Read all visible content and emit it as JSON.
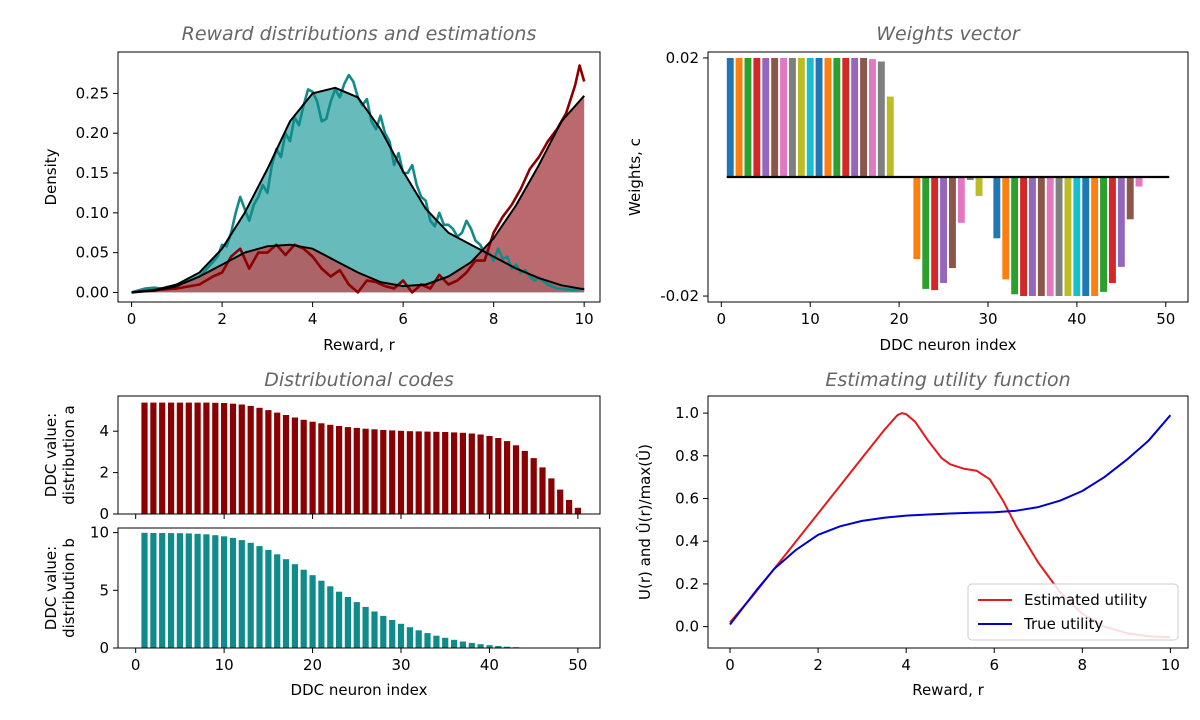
{
  "colors": {
    "teal": "#0f8b8b",
    "teal_fill": "#5fb8b7",
    "dark_red": "#8b0000",
    "red_fill": "#b25a5e",
    "estimated": "#e41a1c",
    "true_utility": "#0000d0",
    "title_grey": "#666666",
    "tab10": [
      "#1f77b4",
      "#ff7f0e",
      "#2ca02c",
      "#d62728",
      "#9467bd",
      "#8c564b",
      "#e377c2",
      "#7f7f7f",
      "#bcbd22",
      "#17becf"
    ]
  },
  "chart_data": [
    {
      "id": "reward",
      "type": "area",
      "title": "Reward distributions and estimations",
      "xlabel": "Reward, r",
      "ylabel": "Density",
      "xlim": [
        -0.3,
        10.35
      ],
      "ylim": [
        -0.012,
        0.302
      ],
      "xticks": [
        0,
        2,
        4,
        6,
        8,
        10
      ],
      "yticks": [
        0.0,
        0.05,
        0.1,
        0.15,
        0.2,
        0.25
      ],
      "ytick_labels": [
        "0.00",
        "0.05",
        "0.10",
        "0.15",
        "0.20",
        "0.25"
      ],
      "grid": false,
      "series": [
        {
          "distribution": "a",
          "kind": "sampled density",
          "color": "teal",
          "x": [
            0,
            0.3,
            0.5,
            0.8,
            1.0,
            1.3,
            1.5,
            1.7,
            1.9,
            2.0,
            2.1,
            2.2,
            2.3,
            2.4,
            2.5,
            2.6,
            2.7,
            2.8,
            2.9,
            3.0,
            3.1,
            3.2,
            3.3,
            3.4,
            3.5,
            3.6,
            3.7,
            3.8,
            3.9,
            4.0,
            4.1,
            4.2,
            4.3,
            4.4,
            4.5,
            4.6,
            4.7,
            4.8,
            4.9,
            5.0,
            5.1,
            5.2,
            5.3,
            5.4,
            5.5,
            5.6,
            5.7,
            5.8,
            5.9,
            6.0,
            6.1,
            6.2,
            6.3,
            6.4,
            6.5,
            6.6,
            6.7,
            6.8,
            6.9,
            7.0,
            7.1,
            7.2,
            7.3,
            7.4,
            7.5,
            7.6,
            7.7,
            7.8,
            7.9,
            8.0,
            8.1,
            8.2,
            8.3,
            8.4,
            8.5,
            8.6,
            8.7,
            8.8,
            8.9,
            9.0,
            9.2,
            9.4,
            9.6,
            9.8,
            10.0
          ],
          "y": [
            0.0,
            0.005,
            0.006,
            0.004,
            0.01,
            0.015,
            0.02,
            0.032,
            0.045,
            0.06,
            0.058,
            0.075,
            0.1,
            0.12,
            0.105,
            0.09,
            0.11,
            0.12,
            0.135,
            0.125,
            0.16,
            0.18,
            0.17,
            0.2,
            0.19,
            0.22,
            0.21,
            0.235,
            0.255,
            0.252,
            0.24,
            0.215,
            0.218,
            0.24,
            0.255,
            0.245,
            0.262,
            0.273,
            0.265,
            0.245,
            0.235,
            0.243,
            0.215,
            0.205,
            0.222,
            0.2,
            0.19,
            0.16,
            0.175,
            0.15,
            0.15,
            0.16,
            0.135,
            0.12,
            0.115,
            0.09,
            0.083,
            0.1,
            0.085,
            0.085,
            0.08,
            0.07,
            0.075,
            0.09,
            0.08,
            0.065,
            0.06,
            0.05,
            0.05,
            0.04,
            0.055,
            0.042,
            0.045,
            0.03,
            0.035,
            0.025,
            0.028,
            0.02,
            0.015,
            0.018,
            0.01,
            0.005,
            0.004,
            0.003,
            0.005
          ]
        },
        {
          "distribution": "b",
          "kind": "sampled density",
          "color": "dark_red",
          "x": [
            0,
            0.5,
            1.0,
            1.5,
            1.8,
            2.0,
            2.2,
            2.4,
            2.6,
            2.8,
            3.0,
            3.2,
            3.4,
            3.6,
            3.8,
            4.0,
            4.2,
            4.4,
            4.6,
            4.8,
            5.0,
            5.2,
            5.4,
            5.6,
            5.8,
            6.0,
            6.2,
            6.4,
            6.6,
            6.8,
            7.0,
            7.2,
            7.4,
            7.6,
            7.8,
            8.0,
            8.2,
            8.4,
            8.6,
            8.8,
            9.0,
            9.2,
            9.4,
            9.6,
            9.8,
            9.9,
            10.0
          ],
          "y": [
            0.0,
            0.003,
            0.005,
            0.01,
            0.02,
            0.025,
            0.045,
            0.055,
            0.03,
            0.05,
            0.05,
            0.06,
            0.047,
            0.06,
            0.055,
            0.045,
            0.03,
            0.02,
            0.028,
            0.01,
            0.0,
            0.015,
            0.013,
            0.008,
            0.005,
            0.015,
            0.0,
            0.01,
            0.005,
            0.022,
            0.01,
            0.015,
            0.025,
            0.04,
            0.04,
            0.075,
            0.095,
            0.11,
            0.13,
            0.155,
            0.17,
            0.19,
            0.205,
            0.225,
            0.26,
            0.285,
            0.265
          ]
        },
        {
          "distribution": "a",
          "kind": "estimated density",
          "color": "black",
          "fill": "teal_fill",
          "x": [
            0,
            0.5,
            1.0,
            1.5,
            2.0,
            2.5,
            3.0,
            3.5,
            4.0,
            4.5,
            5.0,
            5.5,
            6.0,
            6.5,
            7.0,
            7.5,
            8.0,
            8.5,
            9.0,
            9.5,
            10.0
          ],
          "y": [
            0.0,
            0.003,
            0.01,
            0.025,
            0.055,
            0.1,
            0.155,
            0.215,
            0.25,
            0.257,
            0.245,
            0.205,
            0.152,
            0.105,
            0.075,
            0.06,
            0.045,
            0.03,
            0.018,
            0.009,
            0.004
          ]
        },
        {
          "distribution": "b",
          "kind": "estimated density",
          "color": "black",
          "fill": "red_fill",
          "x": [
            0,
            0.5,
            1.0,
            1.5,
            2.0,
            2.5,
            3.0,
            3.5,
            4.0,
            4.5,
            5.0,
            5.5,
            6.0,
            6.5,
            7.0,
            7.5,
            8.0,
            8.5,
            9.0,
            9.5,
            10.0
          ],
          "y": [
            0.0,
            0.002,
            0.008,
            0.02,
            0.035,
            0.05,
            0.058,
            0.06,
            0.055,
            0.04,
            0.025,
            0.013,
            0.008,
            0.01,
            0.02,
            0.038,
            0.068,
            0.11,
            0.16,
            0.215,
            0.247
          ]
        }
      ]
    },
    {
      "id": "weights",
      "type": "bar",
      "title": "Weights vector",
      "xlabel": "DDC neuron index",
      "ylabel": "Weights, c",
      "xlim": [
        -1.5,
        52.5
      ],
      "ylim": [
        -0.021,
        0.021
      ],
      "xticks": [
        0,
        10,
        20,
        30,
        40,
        50
      ],
      "yticks": [
        0.02,
        -0.02
      ],
      "ytick_labels": [
        "0.02",
        "-0.02"
      ],
      "baseline": 0,
      "x": [
        1,
        2,
        3,
        4,
        5,
        6,
        7,
        8,
        9,
        10,
        11,
        12,
        13,
        14,
        15,
        16,
        17,
        18,
        19,
        20,
        21,
        22,
        23,
        24,
        25,
        26,
        27,
        28,
        29,
        30,
        31,
        32,
        33,
        34,
        35,
        36,
        37,
        38,
        39,
        40,
        41,
        42,
        43,
        44,
        45,
        46,
        47,
        48,
        49,
        50
      ],
      "values": [
        0.02,
        0.02,
        0.02,
        0.02,
        0.02,
        0.02,
        0.02,
        0.02,
        0.02,
        0.02,
        0.02,
        0.02,
        0.02,
        0.02,
        0.02,
        0.02,
        0.0198,
        0.0194,
        0.0135,
        0.0,
        0.0,
        -0.0138,
        -0.0188,
        -0.019,
        -0.0178,
        -0.0153,
        -0.0077,
        -0.0005,
        -0.0032,
        0.0,
        -0.0103,
        -0.0172,
        -0.0197,
        -0.02,
        -0.02,
        -0.02,
        -0.02,
        -0.02,
        -0.02,
        -0.02,
        -0.02,
        -0.02,
        -0.0193,
        -0.0178,
        -0.0151,
        -0.0071,
        -0.0016,
        0.0,
        0.0,
        0.0
      ]
    },
    {
      "id": "ddc_a",
      "type": "bar",
      "title": "Distributional codes",
      "ylabel_lines": [
        "DDC value:",
        "distribution a"
      ],
      "xlim": [
        -2,
        52.5
      ],
      "ylim": [
        0,
        5.7
      ],
      "xticks": [
        0,
        10,
        20,
        30,
        40,
        50
      ],
      "yticks": [
        0,
        2,
        4
      ],
      "ytick_labels": [
        "0",
        "2",
        "4"
      ],
      "color": "dark_red",
      "x": [
        1,
        2,
        3,
        4,
        5,
        6,
        7,
        8,
        9,
        10,
        11,
        12,
        13,
        14,
        15,
        16,
        17,
        18,
        19,
        20,
        21,
        22,
        23,
        24,
        25,
        26,
        27,
        28,
        29,
        30,
        31,
        32,
        33,
        34,
        35,
        36,
        37,
        38,
        39,
        40,
        41,
        42,
        43,
        44,
        45,
        46,
        47,
        48,
        49,
        50
      ],
      "values": [
        5.38,
        5.38,
        5.38,
        5.38,
        5.38,
        5.38,
        5.38,
        5.38,
        5.37,
        5.36,
        5.33,
        5.29,
        5.22,
        5.13,
        5.02,
        4.9,
        4.78,
        4.66,
        4.55,
        4.46,
        4.38,
        4.31,
        4.25,
        4.2,
        4.16,
        4.12,
        4.09,
        4.06,
        4.04,
        4.02,
        4.0,
        3.99,
        3.98,
        3.97,
        3.96,
        3.94,
        3.92,
        3.89,
        3.84,
        3.77,
        3.67,
        3.52,
        3.32,
        3.05,
        2.7,
        2.25,
        1.72,
        1.18,
        0.68,
        0.3
      ]
    },
    {
      "id": "ddc_b",
      "type": "bar",
      "ylabel_lines": [
        "DDC value:",
        "distribution b"
      ],
      "xlabel": "DDC neuron index",
      "xlim": [
        -2,
        52.5
      ],
      "ylim": [
        0,
        10.4
      ],
      "xticks": [
        0,
        10,
        20,
        30,
        40,
        50
      ],
      "yticks": [
        0,
        5,
        10
      ],
      "ytick_labels": [
        "0",
        "5",
        "10"
      ],
      "color": "teal",
      "x": [
        1,
        2,
        3,
        4,
        5,
        6,
        7,
        8,
        9,
        10,
        11,
        12,
        13,
        14,
        15,
        16,
        17,
        18,
        19,
        20,
        21,
        22,
        23,
        24,
        25,
        26,
        27,
        28,
        29,
        30,
        31,
        32,
        33,
        34,
        35,
        36,
        37,
        38,
        39,
        40,
        41,
        42,
        43,
        44,
        45,
        46,
        47,
        48,
        49,
        50
      ],
      "values": [
        9.98,
        9.97,
        9.97,
        9.96,
        9.95,
        9.93,
        9.9,
        9.85,
        9.78,
        9.68,
        9.54,
        9.35,
        9.12,
        8.83,
        8.5,
        8.12,
        7.7,
        7.26,
        6.79,
        6.31,
        5.83,
        5.35,
        4.88,
        4.42,
        3.98,
        3.56,
        3.16,
        2.78,
        2.43,
        2.1,
        1.8,
        1.53,
        1.29,
        1.07,
        0.88,
        0.71,
        0.56,
        0.44,
        0.33,
        0.24,
        0.17,
        0.11,
        0.07,
        0.04,
        0.02,
        0.01,
        0.0,
        0.0,
        0.0,
        0.0
      ]
    },
    {
      "id": "utility",
      "type": "line",
      "title": "Estimating utility function",
      "xlabel": "Reward, r",
      "ylabel": "U(r) and Û(r)/max(Û)",
      "xlim": [
        -0.5,
        10.4
      ],
      "ylim": [
        -0.1,
        1.08
      ],
      "xticks": [
        0,
        2,
        4,
        6,
        8,
        10
      ],
      "yticks": [
        0.0,
        0.2,
        0.4,
        0.6,
        0.8,
        1.0
      ],
      "ytick_labels": [
        "0.0",
        "0.2",
        "0.4",
        "0.6",
        "0.8",
        "1.0"
      ],
      "legend_position": "bottom-right",
      "series": [
        {
          "name": "Estimated utility",
          "color": "estimated",
          "x": [
            0.0,
            0.5,
            1.0,
            1.5,
            2.0,
            2.5,
            3.0,
            3.5,
            3.8,
            3.9,
            4.0,
            4.2,
            4.5,
            4.8,
            5.0,
            5.3,
            5.6,
            5.9,
            6.2,
            6.5,
            7.0,
            7.5,
            8.0,
            8.5,
            9.0,
            9.5,
            10.0
          ],
          "y": [
            0.02,
            0.14,
            0.27,
            0.4,
            0.53,
            0.66,
            0.79,
            0.92,
            0.99,
            1.0,
            0.995,
            0.96,
            0.87,
            0.79,
            0.76,
            0.74,
            0.73,
            0.69,
            0.59,
            0.47,
            0.3,
            0.16,
            0.06,
            0.0,
            -0.03,
            -0.045,
            -0.05
          ]
        },
        {
          "name": "True utility",
          "color": "true_utility",
          "x": [
            0.0,
            0.3,
            0.6,
            1.0,
            1.5,
            2.0,
            2.5,
            3.0,
            3.5,
            4.0,
            4.5,
            5.0,
            5.5,
            6.0,
            6.5,
            7.0,
            7.5,
            8.0,
            8.5,
            9.0,
            9.5,
            10.0
          ],
          "y": [
            0.01,
            0.09,
            0.17,
            0.27,
            0.36,
            0.43,
            0.47,
            0.495,
            0.51,
            0.52,
            0.525,
            0.53,
            0.533,
            0.536,
            0.543,
            0.56,
            0.59,
            0.635,
            0.7,
            0.78,
            0.87,
            0.99
          ]
        }
      ]
    }
  ]
}
